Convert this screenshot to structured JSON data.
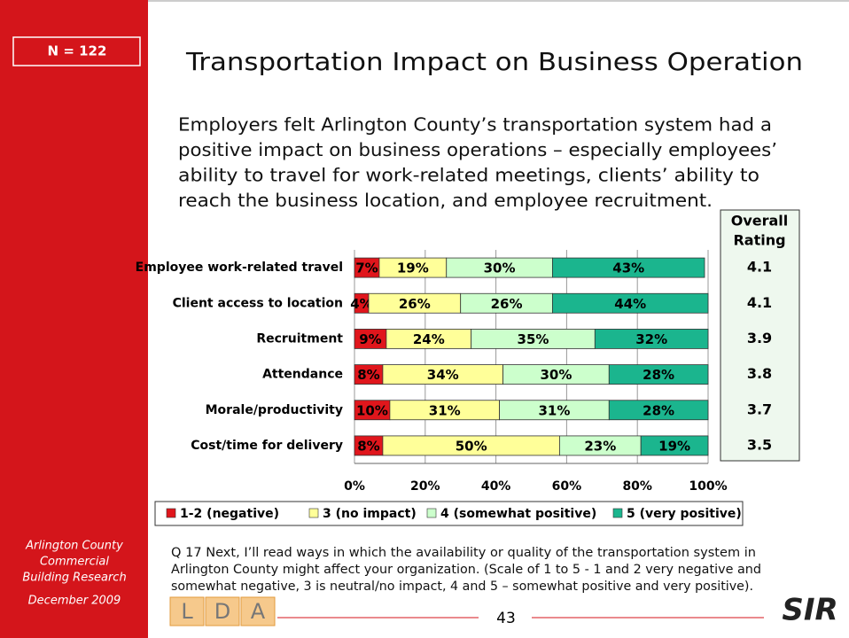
{
  "slide": {
    "sample_size": "N = 122",
    "title": "Transportation Impact on Business Operation",
    "summary_lines": [
      "Employers felt Arlington County’s transportation system had a",
      "positive impact on business operations – especially employees’",
      "ability to travel for work-related meetings, clients’ ability to",
      "reach the business location, and employee recruitment."
    ],
    "question_lines": [
      "Q 17  Next, I’ll read ways in which the availability or quality of the transportation system in",
      "Arlington County might affect your organization.  (Scale of 1 to 5 - 1 and 2 very negative and",
      "somewhat negative, 3 is neutral/no impact, 4 and 5 – somewhat positive and very positive)."
    ],
    "sidebar_lines": [
      "Arlington County",
      "Commercial",
      "Building Research"
    ],
    "date": "December 2009",
    "page_number": "43",
    "logo_left": [
      "L",
      "D",
      "A"
    ],
    "logo_right": "SIR"
  },
  "chart_data": {
    "type": "stacked-bar-horizontal",
    "categories": [
      "Employee work-related travel",
      "Client access to location",
      "Recruitment",
      "Attendance",
      "Morale/productivity",
      "Cost/time for delivery"
    ],
    "series": [
      {
        "name": "1-2 (negative)",
        "color": "#e0161c",
        "values": [
          7,
          4,
          9,
          8,
          10,
          8
        ],
        "value_labels": [
          "7%",
          "4%",
          "9%",
          "8%",
          "10%",
          "8%"
        ]
      },
      {
        "name": "3 (no impact)",
        "color": "#ffff99",
        "values": [
          19,
          26,
          24,
          34,
          31,
          50
        ],
        "value_labels": [
          "19%",
          "26%",
          "24%",
          "34%",
          "31%",
          "50%"
        ]
      },
      {
        "name": "4 (somewhat positive)",
        "color": "#ccffcc",
        "values": [
          30,
          26,
          35,
          30,
          31,
          23
        ],
        "value_labels": [
          "30%",
          "26%",
          "35%",
          "30%",
          "31%",
          "23%"
        ]
      },
      {
        "name": "5 (very positive)",
        "color": "#1bb58e",
        "values": [
          43,
          44,
          32,
          28,
          28,
          19
        ],
        "value_labels": [
          "43%",
          "44%",
          "32%",
          "28%",
          "28%",
          "19%"
        ]
      }
    ],
    "xlim": [
      0,
      100
    ],
    "xticks": [
      {
        "value": 0,
        "label": "0%"
      },
      {
        "value": 20,
        "label": "20%"
      },
      {
        "value": 40,
        "label": "40%"
      },
      {
        "value": 60,
        "label": "60%"
      },
      {
        "value": 80,
        "label": "80%"
      },
      {
        "value": 100,
        "label": "100%"
      }
    ],
    "grid": true,
    "legend": "bottom",
    "overall_rating": {
      "title_lines": [
        "Overall",
        "Rating"
      ],
      "values": [
        4.1,
        4.1,
        3.9,
        3.8,
        3.7,
        3.5
      ]
    }
  }
}
